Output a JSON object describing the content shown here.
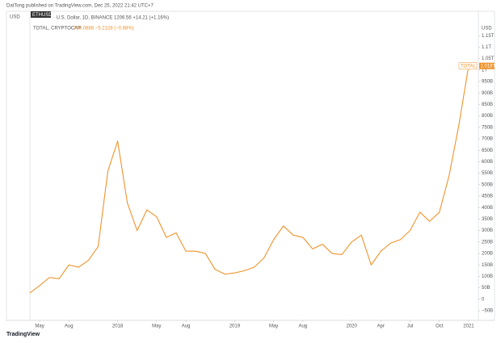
{
  "header": {
    "published": "DatTong published on TradingView.com, Dec 25, 2022 21:42 UTC+7",
    "footer": "TradingView"
  },
  "chart_data": {
    "type": "line",
    "symbol_tag": "ETHUSD",
    "secondary_legend": "· U.S. Dollar, 1D, BINANCE  1206.56  +14.21 (+1.16%)",
    "legend_values": "766.0888  −5.2128 (−0.68%)",
    "left_axis_label": "USD",
    "right_axis_label": "USD",
    "x": [
      "2017-04",
      "2017-05",
      "2017-06",
      "2017-07",
      "2017-08",
      "2017-09",
      "2017-10",
      "2017-11",
      "2017-12",
      "2018-01",
      "2018-02",
      "2018-03",
      "2018-04",
      "2018-05",
      "2018-06",
      "2018-07",
      "2018-08",
      "2018-09",
      "2018-10",
      "2018-11",
      "2018-12",
      "2019-01",
      "2019-02",
      "2019-03",
      "2019-04",
      "2019-05",
      "2019-06",
      "2019-07",
      "2019-08",
      "2019-09",
      "2019-10",
      "2019-11",
      "2019-12",
      "2020-01",
      "2020-02",
      "2020-03",
      "2020-04",
      "2020-05",
      "2020-06",
      "2020-07",
      "2020-08",
      "2020-09",
      "2020-10",
      "2020-11",
      "2020-12",
      "2021-01"
    ],
    "series": [
      {
        "name": "TOTAL, CRYPTOCAP",
        "color": "#f0932b",
        "values": [
          28,
          60,
          95,
          90,
          150,
          140,
          170,
          230,
          560,
          690,
          420,
          300,
          390,
          360,
          270,
          290,
          210,
          210,
          200,
          130,
          110,
          115,
          125,
          140,
          180,
          260,
          320,
          280,
          270,
          220,
          240,
          200,
          195,
          250,
          280,
          150,
          210,
          245,
          260,
          300,
          380,
          340,
          380,
          540,
          760,
          1018
        ]
      }
    ],
    "price_tag": {
      "name": "TOTAL",
      "value": 1018,
      "label": "1.018T"
    },
    "xlim": [
      "2017-04",
      "2021-02"
    ],
    "xticks": [
      {
        "value": "2017-05",
        "label": "May"
      },
      {
        "value": "2017-08",
        "label": "Aug"
      },
      {
        "value": "2018-01",
        "label": "2018"
      },
      {
        "value": "2018-05",
        "label": "May"
      },
      {
        "value": "2018-08",
        "label": "Aug"
      },
      {
        "value": "2019-01",
        "label": "2019"
      },
      {
        "value": "2019-05",
        "label": "May"
      },
      {
        "value": "2019-08",
        "label": "Aug"
      },
      {
        "value": "2020-01",
        "label": "2020"
      },
      {
        "value": "2020-04",
        "label": "Apr"
      },
      {
        "value": "2020-07",
        "label": "Jul"
      },
      {
        "value": "2020-10",
        "label": "Oct"
      },
      {
        "value": "2021-01",
        "label": "2021"
      }
    ],
    "ylim": [
      -85,
      1200
    ],
    "yticks": [
      {
        "value": 1150,
        "label": "1.15T"
      },
      {
        "value": 1100,
        "label": "1.1T"
      },
      {
        "value": 1050,
        "label": "1.05T"
      },
      {
        "value": 1000,
        "label": "1T"
      },
      {
        "value": 950,
        "label": "950B"
      },
      {
        "value": 900,
        "label": "900B"
      },
      {
        "value": 850,
        "label": "850B"
      },
      {
        "value": 800,
        "label": "800B"
      },
      {
        "value": 750,
        "label": "750B"
      },
      {
        "value": 700,
        "label": "700B"
      },
      {
        "value": 650,
        "label": "650B"
      },
      {
        "value": 600,
        "label": "600B"
      },
      {
        "value": 550,
        "label": "550B"
      },
      {
        "value": 500,
        "label": "500B"
      },
      {
        "value": 450,
        "label": "450B"
      },
      {
        "value": 400,
        "label": "400B"
      },
      {
        "value": 350,
        "label": "350B"
      },
      {
        "value": 300,
        "label": "300B"
      },
      {
        "value": 250,
        "label": "250B"
      },
      {
        "value": 200,
        "label": "200B"
      },
      {
        "value": 150,
        "label": "150B"
      },
      {
        "value": 100,
        "label": "100B"
      },
      {
        "value": 50,
        "label": "50B"
      },
      0,
      {
        "value": -50,
        "label": "−50B"
      }
    ],
    "grid": false
  }
}
